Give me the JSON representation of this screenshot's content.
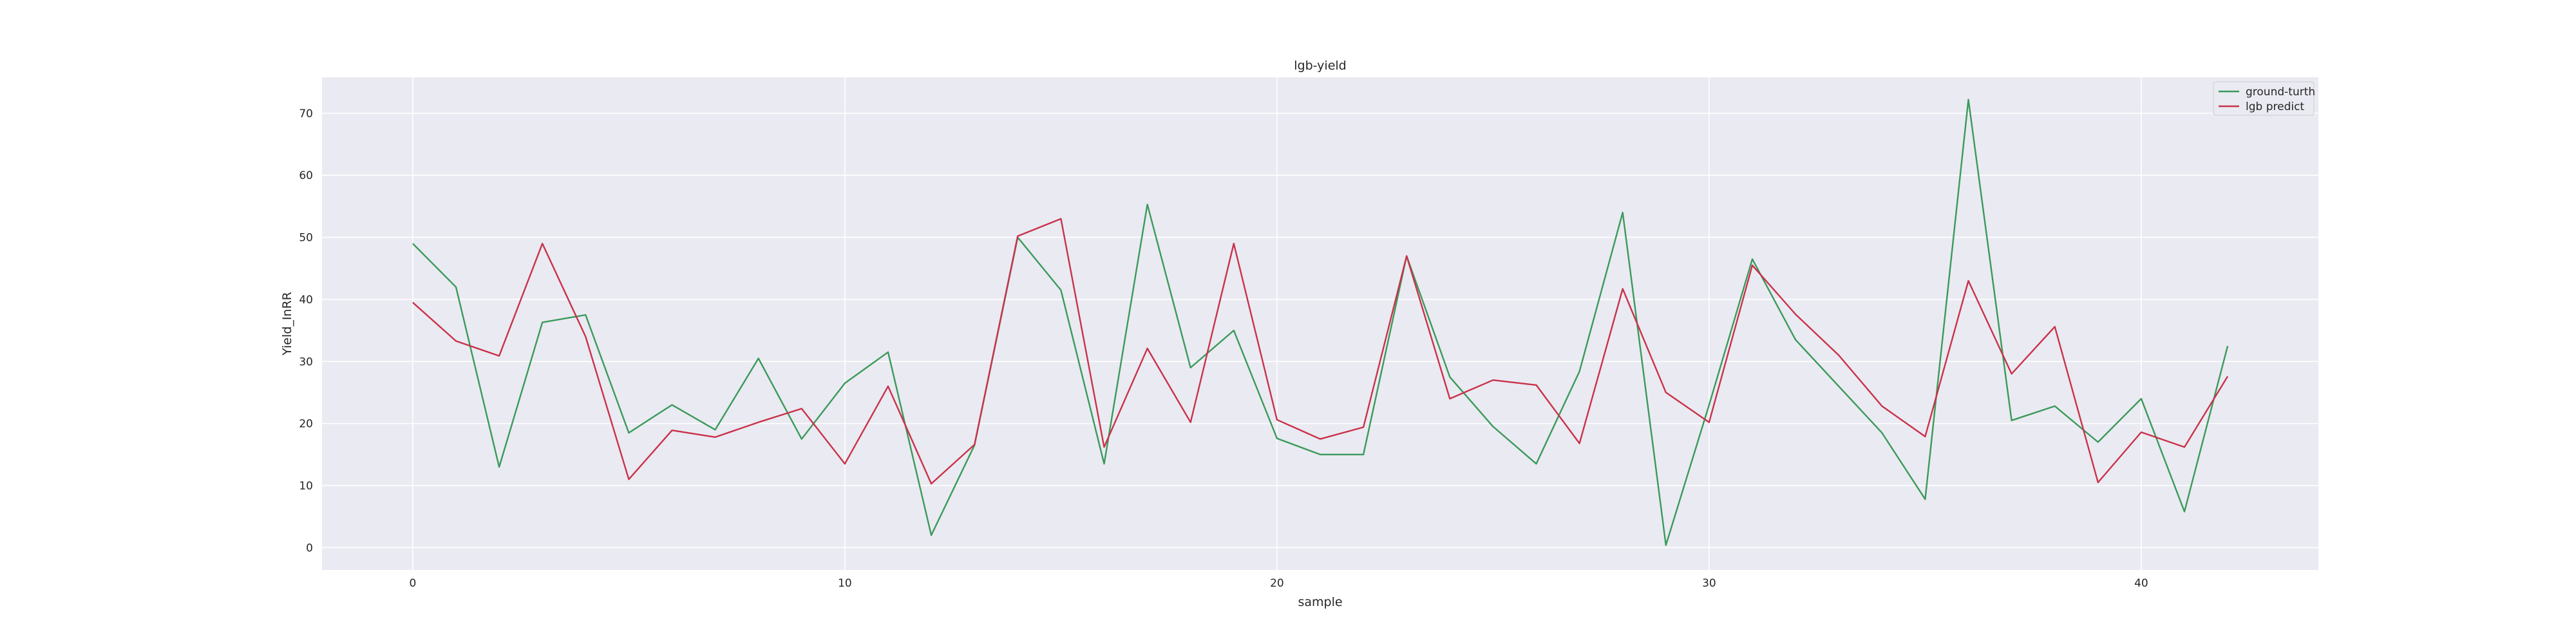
{
  "chart_data": {
    "type": "line",
    "title": "lgb-yield",
    "xlabel": "sample",
    "ylabel": "Yield_InRR",
    "xlim": [
      -2.1,
      44.1
    ],
    "ylim": [
      -3.6,
      75.8
    ],
    "xticks": [
      0,
      10,
      20,
      30,
      40
    ],
    "yticks": [
      0,
      10,
      20,
      30,
      40,
      50,
      60,
      70
    ],
    "grid": true,
    "legend_position": "top-right",
    "colors": {
      "background": "#eaeaf2",
      "grid": "#ffffff",
      "ground-turth": "#3a9a5a",
      "lgb predict": "#c9324a"
    },
    "x": [
      0,
      1,
      2,
      3,
      4,
      5,
      6,
      7,
      8,
      9,
      10,
      11,
      12,
      13,
      14,
      15,
      16,
      17,
      18,
      19,
      20,
      21,
      22,
      23,
      24,
      25,
      26,
      27,
      28,
      29,
      30,
      31,
      32,
      33,
      34,
      35,
      36,
      37,
      38,
      39,
      40,
      41,
      42
    ],
    "series": [
      {
        "name": "ground-turth",
        "values": [
          49,
          42,
          13,
          36.3,
          37.5,
          18.5,
          23,
          19,
          30.5,
          17.5,
          26.5,
          31.5,
          2,
          16.5,
          50,
          41.5,
          13.5,
          55.3,
          29,
          35,
          17.6,
          15,
          15,
          47,
          27.5,
          19.5,
          13.5,
          28.4,
          54,
          0.4,
          23,
          46.5,
          33.5,
          26,
          18.5,
          7.8,
          72.2,
          20.5,
          22.8,
          17,
          24,
          5.8,
          32.5
        ]
      },
      {
        "name": "lgb predict",
        "values": [
          39.5,
          33.3,
          30.9,
          49,
          34,
          11,
          18.9,
          17.8,
          20.2,
          22.4,
          13.5,
          26,
          10.3,
          16.6,
          50.2,
          53,
          16.2,
          32.1,
          20.2,
          49,
          20.6,
          17.5,
          19.4,
          47,
          24,
          27,
          26.2,
          16.8,
          41.7,
          25,
          20.2,
          45.5,
          37.6,
          31,
          22.8,
          17.9,
          43,
          28,
          35.6,
          10.5,
          18.6,
          16.2,
          27.6
        ]
      }
    ]
  }
}
